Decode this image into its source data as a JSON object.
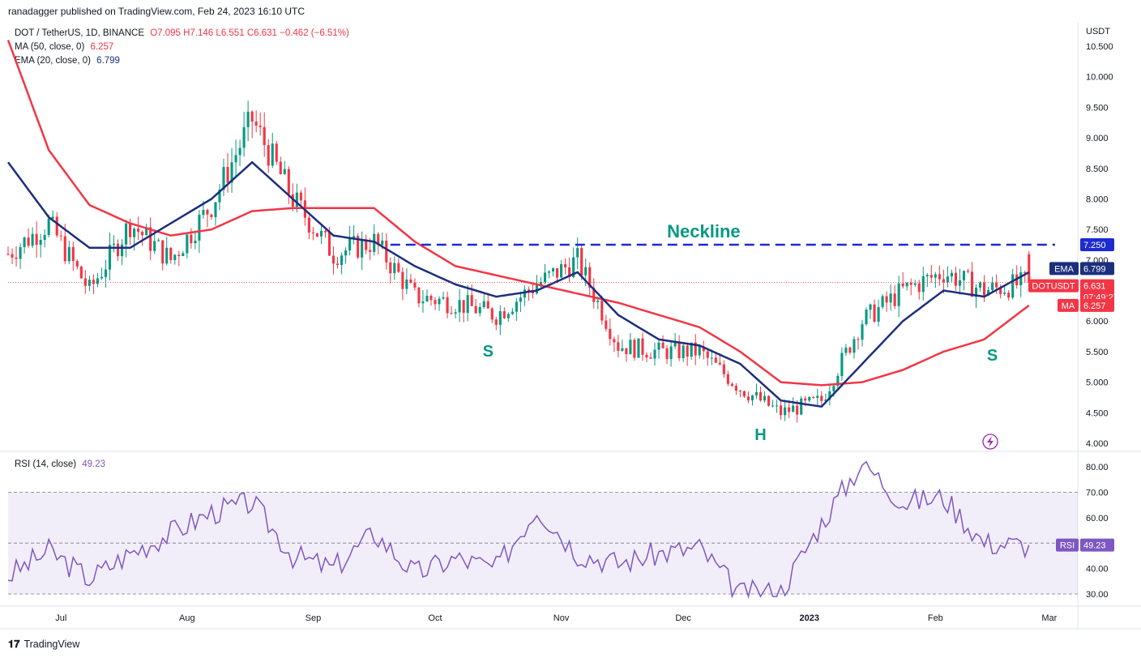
{
  "credit": "ranadagger published on TradingView.com, Feb 24, 2023 16:10 UTC",
  "legend": {
    "symbol": "DOT / TetherUS, 1D, BINANCE",
    "open": "O7.095",
    "high": "H7.146",
    "low": "L6.551",
    "close": "C6.631",
    "change": "−0.462 (−6.51%)",
    "ma_label": "MA (50, close, 0)",
    "ma_value": "6.257",
    "ema_label": "EMA (20, close, 0)",
    "ema_value": "6.799",
    "rsi_label": "RSI (14, close)",
    "rsi_value": "49.23"
  },
  "unit": "USDT",
  "brand": "TradingView",
  "colors": {
    "up": "#089981",
    "down": "#f23645",
    "ema": "#1c2f7d",
    "ma": "#f23645",
    "rsi": "#7e57c2",
    "neckline": "#1d2bcf",
    "annotation": "#089981"
  },
  "chart_data": [
    {
      "type": "candlestick",
      "title": "DOT / TetherUS, 1D, BINANCE",
      "y_axis_ticks": [
        "4.000",
        "4.500",
        "5.000",
        "5.500",
        "6.000",
        "6.500",
        "7.000",
        "7.500",
        "8.000",
        "8.500",
        "9.000",
        "9.500",
        "10.000",
        "10.500"
      ],
      "x_axis_ticks": [
        "Jul",
        "Aug",
        "Sep",
        "Oct",
        "Nov",
        "Dec",
        "2023",
        "Feb",
        "Mar"
      ],
      "ylim": [
        3.9,
        10.8
      ],
      "x_dates": [
        "2022-06-18",
        "2022-06-28",
        "2022-07-08",
        "2022-07-18",
        "2022-07-28",
        "2022-08-07",
        "2022-08-17",
        "2022-08-27",
        "2022-09-06",
        "2022-09-16",
        "2022-09-26",
        "2022-10-06",
        "2022-10-16",
        "2022-10-26",
        "2022-11-05",
        "2022-11-15",
        "2022-11-25",
        "2022-12-05",
        "2022-12-15",
        "2022-12-25",
        "2023-01-04",
        "2023-01-14",
        "2023-01-24",
        "2023-02-03",
        "2023-02-13",
        "2023-02-24"
      ],
      "close_approx": [
        7.1,
        7.6,
        6.5,
        7.6,
        7.0,
        7.9,
        9.3,
        8.0,
        7.1,
        7.3,
        6.4,
        6.3,
        6.1,
        6.6,
        7.0,
        5.6,
        5.5,
        5.5,
        4.9,
        4.5,
        4.7,
        6.0,
        6.5,
        6.8,
        6.5,
        6.631
      ],
      "series": [
        {
          "name": "EMA",
          "values": [
            8.6,
            7.7,
            7.2,
            7.2,
            7.6,
            8.0,
            8.6,
            8.0,
            7.4,
            7.3,
            6.9,
            6.6,
            6.4,
            6.5,
            6.8,
            6.1,
            5.7,
            5.6,
            5.3,
            4.7,
            4.6,
            5.3,
            6.0,
            6.5,
            6.4,
            6.799
          ]
        },
        {
          "name": "MA",
          "values": [
            10.6,
            8.8,
            7.9,
            7.6,
            7.4,
            7.5,
            7.8,
            7.85,
            7.85,
            7.85,
            7.3,
            6.9,
            6.75,
            6.6,
            6.45,
            6.3,
            6.1,
            5.9,
            5.5,
            5.0,
            4.95,
            5.0,
            5.2,
            5.5,
            5.7,
            6.257
          ]
        }
      ],
      "annotations": [
        {
          "text": "Neckline",
          "level": 7.25
        },
        {
          "text": "S",
          "date": "2022-10-14"
        },
        {
          "text": "H",
          "date": "2022-12-20"
        },
        {
          "text": "S",
          "date": "2023-02-15"
        }
      ],
      "price_labels": [
        {
          "tag": "",
          "value": "7.250"
        },
        {
          "tag": "EMA",
          "value": "6.799"
        },
        {
          "tag": "DOTUSDT",
          "value": "6.631",
          "sub": "07:49:27"
        },
        {
          "tag": "MA",
          "value": "6.257"
        }
      ]
    },
    {
      "type": "line",
      "title": "RSI (14, close)",
      "y_axis_ticks": [
        "30.00",
        "40.00",
        "50.00",
        "60.00",
        "70.00",
        "80.00"
      ],
      "ylim": [
        28,
        84
      ],
      "band": [
        30,
        70
      ],
      "series": [
        {
          "name": "RSI",
          "values": [
            37,
            47,
            36,
            46,
            54,
            62,
            66,
            45,
            40,
            54,
            38,
            44,
            40,
            64,
            46,
            42,
            46,
            48,
            30,
            31,
            58,
            82,
            66,
            68,
            50,
            49.23
          ]
        }
      ],
      "price_labels": [
        {
          "tag": "RSI",
          "value": "49.23"
        }
      ]
    }
  ]
}
